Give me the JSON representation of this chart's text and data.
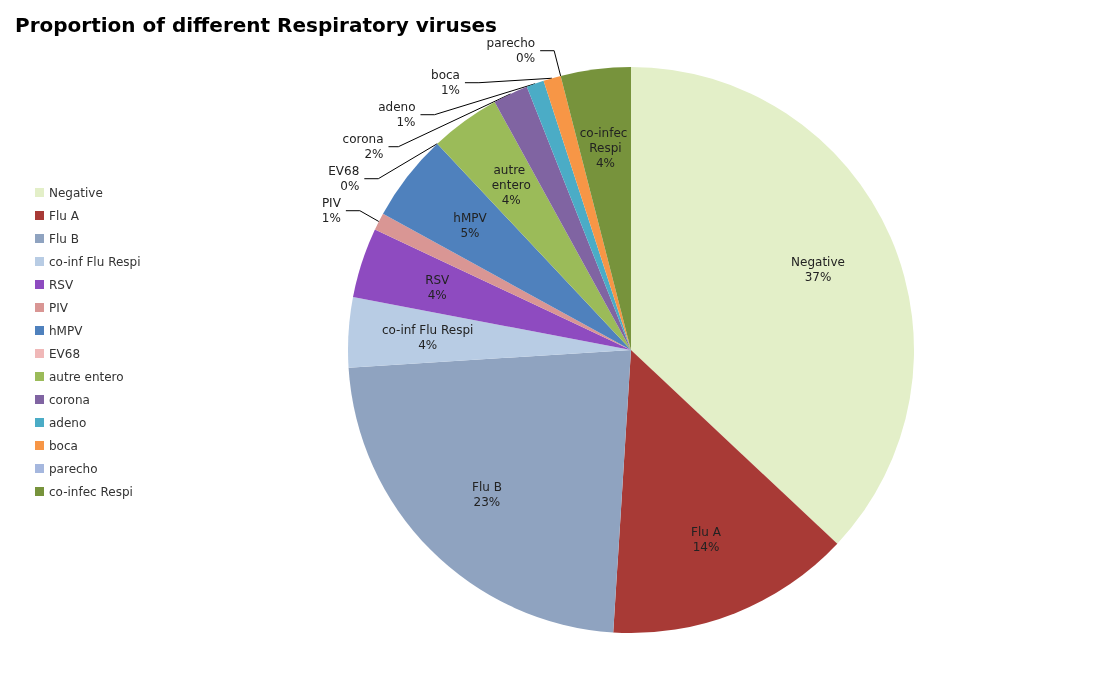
{
  "chart_data": {
    "type": "pie",
    "title": "Proportion of different Respiratory viruses",
    "categories": [
      "Negative",
      "Flu A",
      "Flu B",
      "co-inf Flu Respi",
      "RSV",
      "PIV",
      "hMPV",
      "EV68",
      "autre entero",
      "corona",
      "adeno",
      "boca",
      "parecho",
      "co-infec Respi"
    ],
    "values": [
      37,
      14,
      23,
      4,
      4,
      1,
      5,
      0,
      4,
      2,
      1,
      1,
      0,
      4
    ],
    "colors": [
      "#e3efc8",
      "#a83a36",
      "#8fa3c0",
      "#b8cce4",
      "#8e4bc0",
      "#d99694",
      "#4f81bd",
      "#f0b8b8",
      "#9bbb59",
      "#8064a2",
      "#4bacc6",
      "#f79646",
      "#a5b7de",
      "#77933c"
    ],
    "value_labels": [
      "37%",
      "14%",
      "23%",
      "4%",
      "4%",
      "1%",
      "5%",
      "0%",
      "4%",
      "2%",
      "1%",
      "1%",
      "0%",
      "4%"
    ],
    "legend": "left"
  }
}
